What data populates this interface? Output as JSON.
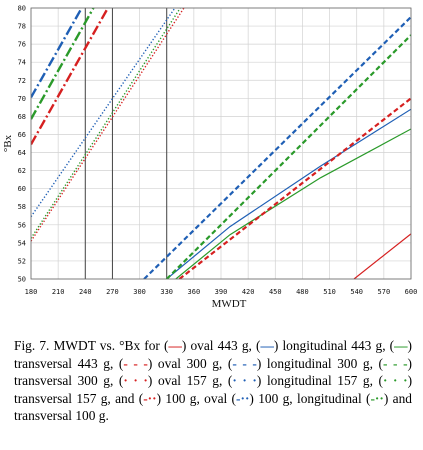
{
  "caption": {
    "parts": [
      {
        "t": "Fig. 7. MWDT vs. °Bx for ("
      },
      {
        "t": "—",
        "c": "#d62020"
      },
      {
        "t": ") oval 443 g, ("
      },
      {
        "t": "—",
        "c": "#1f5fb5"
      },
      {
        "t": ") longitudinal 443 g, ("
      },
      {
        "t": "—",
        "c": "#2a9a2a"
      },
      {
        "t": ") transversal 443 g, ("
      },
      {
        "t": "- - -",
        "c": "#d62020"
      },
      {
        "t": ") oval 300 g, ("
      },
      {
        "t": "- - -",
        "c": "#1f5fb5"
      },
      {
        "t": ") longitudinal 300 g, ("
      },
      {
        "t": "- - -",
        "c": "#2a9a2a"
      },
      {
        "t": ") transversal 300 g, ("
      },
      {
        "t": "· · ·",
        "c": "#d62020"
      },
      {
        "t": ") oval 157 g, ("
      },
      {
        "t": "· · ·",
        "c": "#1f5fb5"
      },
      {
        "t": ") longitudinal 157 g, ("
      },
      {
        "t": "· · ·",
        "c": "#2a9a2a"
      },
      {
        "t": ") transversal 157 g, and ("
      },
      {
        "t": "-··",
        "c": "#d62020"
      },
      {
        "t": ") 100 g, oval ("
      },
      {
        "t": "-··",
        "c": "#1f5fb5"
      },
      {
        "t": ") 100 g, longitudinal ("
      },
      {
        "t": "-··",
        "c": "#2a9a2a"
      },
      {
        "t": ") and transversal 100 g."
      }
    ]
  },
  "chart_data": {
    "type": "line",
    "xlabel": "MWDT",
    "ylabel": "°Bx",
    "xlim": [
      180,
      600
    ],
    "ylim": [
      50,
      80
    ],
    "xticks": [
      "180",
      "210",
      "240",
      "270",
      "300",
      "330",
      "360",
      "390",
      "420",
      "450",
      "480",
      "510",
      "540",
      "570",
      "600"
    ],
    "yticks": [
      "50",
      "52",
      "54",
      "56",
      "58",
      "60",
      "62",
      "64",
      "66",
      "68",
      "70",
      "72",
      "74",
      "76",
      "78",
      "80"
    ],
    "vlines_at": [
      240,
      270,
      330
    ],
    "grid": true,
    "colors": {
      "oval": "#d62020",
      "longitudinal": "#1f5fb5",
      "transversal": "#2a9a2a"
    },
    "series": [
      {
        "style": "solid",
        "color": "#d62020",
        "points": [
          [
            537,
            50
          ],
          [
            600,
            55
          ]
        ]
      },
      {
        "style": "solid",
        "color": "#1f5fb5",
        "points": [
          [
            330,
            50
          ],
          [
            400,
            55.8
          ],
          [
            500,
            62.5
          ],
          [
            600,
            68.8
          ]
        ]
      },
      {
        "style": "solid",
        "color": "#2a9a2a",
        "points": [
          [
            340,
            50
          ],
          [
            400,
            54.9
          ],
          [
            500,
            61.2
          ],
          [
            600,
            66.6
          ]
        ]
      },
      {
        "style": "dashed",
        "color": "#d62020",
        "points": [
          [
            344,
            50
          ],
          [
            600,
            70
          ]
        ]
      },
      {
        "style": "dashed",
        "color": "#1f5fb5",
        "points": [
          [
            305,
            50
          ],
          [
            600,
            79
          ]
        ]
      },
      {
        "style": "dashed",
        "color": "#2a9a2a",
        "points": [
          [
            330,
            50
          ],
          [
            600,
            77
          ]
        ]
      },
      {
        "style": "dotted",
        "color": "#d62020",
        "points": [
          [
            180,
            54.2
          ],
          [
            349,
            80
          ]
        ]
      },
      {
        "style": "dotted",
        "color": "#1f5fb5",
        "points": [
          [
            180,
            56.9
          ],
          [
            339,
            80
          ]
        ]
      },
      {
        "style": "dotted",
        "color": "#2a9a2a",
        "points": [
          [
            180,
            54.5
          ],
          [
            345,
            80
          ]
        ]
      },
      {
        "style": "dashdot",
        "color": "#d62020",
        "points": [
          [
            180,
            64.9
          ],
          [
            265,
            80
          ]
        ]
      },
      {
        "style": "dashdot",
        "color": "#1f5fb5",
        "points": [
          [
            180,
            70.1
          ],
          [
            236,
            80
          ]
        ]
      },
      {
        "style": "dashdot",
        "color": "#2a9a2a",
        "points": [
          [
            180,
            67.7
          ],
          [
            249,
            80
          ]
        ]
      }
    ]
  }
}
